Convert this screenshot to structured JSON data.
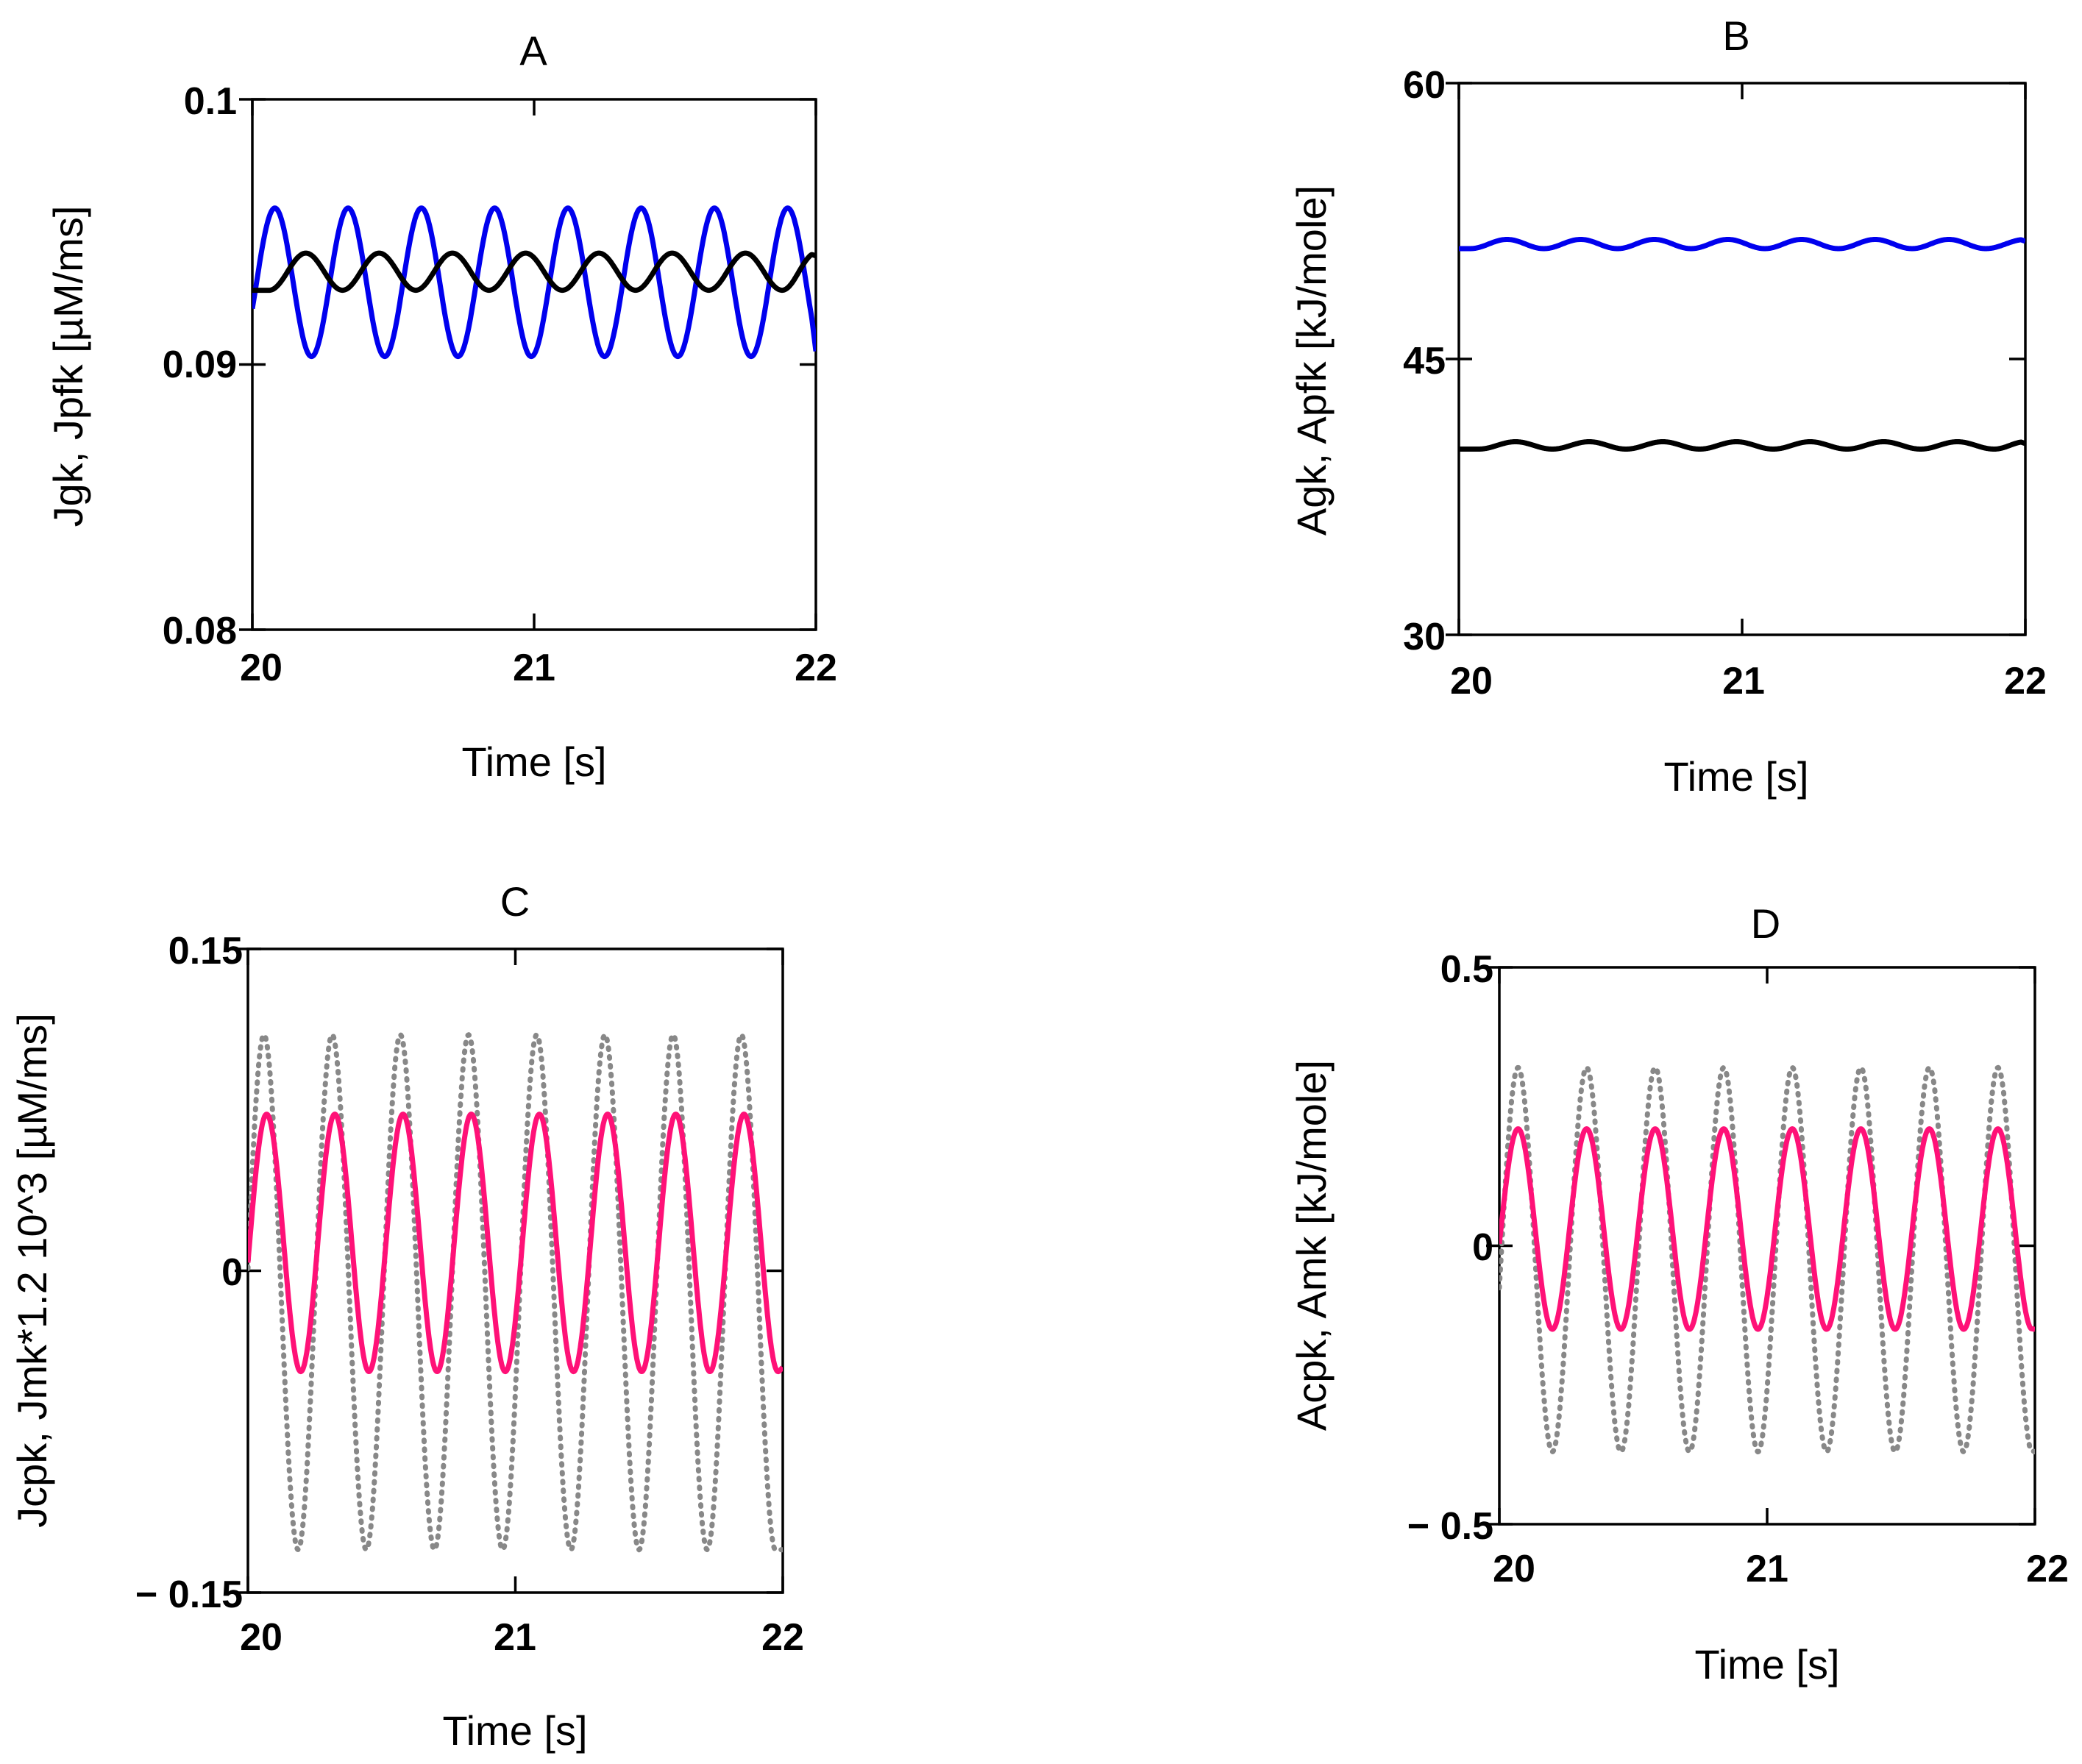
{
  "chart_data": [
    {
      "type": "line",
      "panel": "A",
      "title": "A",
      "xlabel": "Time [s]",
      "ylabel": "Jgk, Jpfk [µM/ms]",
      "xlim": [
        20,
        22
      ],
      "ylim": [
        0.08,
        0.1
      ],
      "xticks": [
        "20",
        "21",
        "22"
      ],
      "yticks": [
        "0.08",
        "0.09",
        "0.1"
      ],
      "grid": false,
      "series": [
        {
          "color": "#0000ee",
          "style": "solid",
          "period": 0.26,
          "peaks": [
            20.08,
            20.34,
            20.6,
            20.86,
            21.12,
            21.38,
            21.64,
            21.9
          ],
          "max": 0.0959,
          "min": 0.0903,
          "start": 0.0925,
          "end": 0.0905
        },
        {
          "color": "#000000",
          "style": "solid",
          "period": 0.26,
          "peaks": [
            20.19,
            20.45,
            20.71,
            20.97,
            21.23,
            21.49,
            21.75,
            22.0
          ],
          "max": 0.0942,
          "min": 0.0928,
          "start": 0.0928,
          "end": 0.0941
        }
      ]
    },
    {
      "type": "line",
      "panel": "B",
      "title": "B",
      "xlabel": "Time [s]",
      "ylabel": "Agk, Apfk [kJ/mole]",
      "xlim": [
        20,
        22
      ],
      "ylim": [
        30,
        60
      ],
      "xticks": [
        "20",
        "21",
        "22"
      ],
      "yticks": [
        "30",
        "45",
        "60"
      ],
      "grid": false,
      "series": [
        {
          "color": "#0000ee",
          "style": "solid",
          "period": 0.26,
          "peaks": [
            20.17,
            20.43,
            20.69,
            20.95,
            21.21,
            21.47,
            21.73,
            22.0
          ],
          "max": 51.5,
          "min": 51.0,
          "start": 51.0,
          "end": 51.4
        },
        {
          "color": "#000000",
          "style": "solid",
          "period": 0.26,
          "peaks": [
            20.2,
            20.46,
            20.72,
            20.98,
            21.24,
            21.5,
            21.76,
            22.0
          ],
          "max": 40.5,
          "min": 40.1,
          "start": 40.1,
          "end": 40.4
        }
      ]
    },
    {
      "type": "line",
      "panel": "C",
      "title": "C",
      "xlabel": "Time [s]",
      "ylabel": "Jcpk, Jmk*1.2 10^3 [µM/ms]",
      "xlim": [
        20,
        22
      ],
      "ylim": [
        -0.15,
        0.15
      ],
      "xticks": [
        "20",
        "21",
        "22"
      ],
      "yticks": [
        "− 0.15",
        "0",
        "0.15"
      ],
      "grid": false,
      "series": [
        {
          "color": "#888888",
          "style": "dotted",
          "period": 0.255,
          "peaks": [
            20.06,
            20.315,
            20.57,
            20.825,
            21.08,
            21.335,
            21.59,
            21.845
          ],
          "max": 0.11,
          "min": -0.13,
          "start": -0.01,
          "end": -0.13
        },
        {
          "color": "#ff1177",
          "style": "solid",
          "period": 0.255,
          "peaks": [
            20.07,
            20.325,
            20.58,
            20.835,
            21.09,
            21.345,
            21.6,
            21.855
          ],
          "max": 0.073,
          "min": -0.047,
          "start": 0.02,
          "end": -0.045
        }
      ]
    },
    {
      "type": "line",
      "panel": "D",
      "title": "D",
      "xlabel": "Time [s]",
      "ylabel": "Acpk, Amk [kJ/mole]",
      "xlim": [
        20,
        22
      ],
      "ylim": [
        -0.5,
        0.5
      ],
      "xticks": [
        "20",
        "21",
        "22"
      ],
      "yticks": [
        "− 0.5",
        "0",
        "0.5"
      ],
      "grid": false,
      "series": [
        {
          "color": "#888888",
          "style": "dotted",
          "period": 0.256,
          "peaks": [
            20.07,
            20.326,
            20.582,
            20.838,
            21.094,
            21.35,
            21.606,
            21.862
          ],
          "max": 0.32,
          "min": -0.37,
          "start": -0.02,
          "end": -0.37
        },
        {
          "color": "#ff1177",
          "style": "solid",
          "period": 0.256,
          "peaks": [
            20.07,
            20.326,
            20.582,
            20.838,
            21.094,
            21.35,
            21.606,
            21.862
          ],
          "max": 0.21,
          "min": -0.15,
          "start": 0.02,
          "end": -0.15
        }
      ]
    }
  ]
}
